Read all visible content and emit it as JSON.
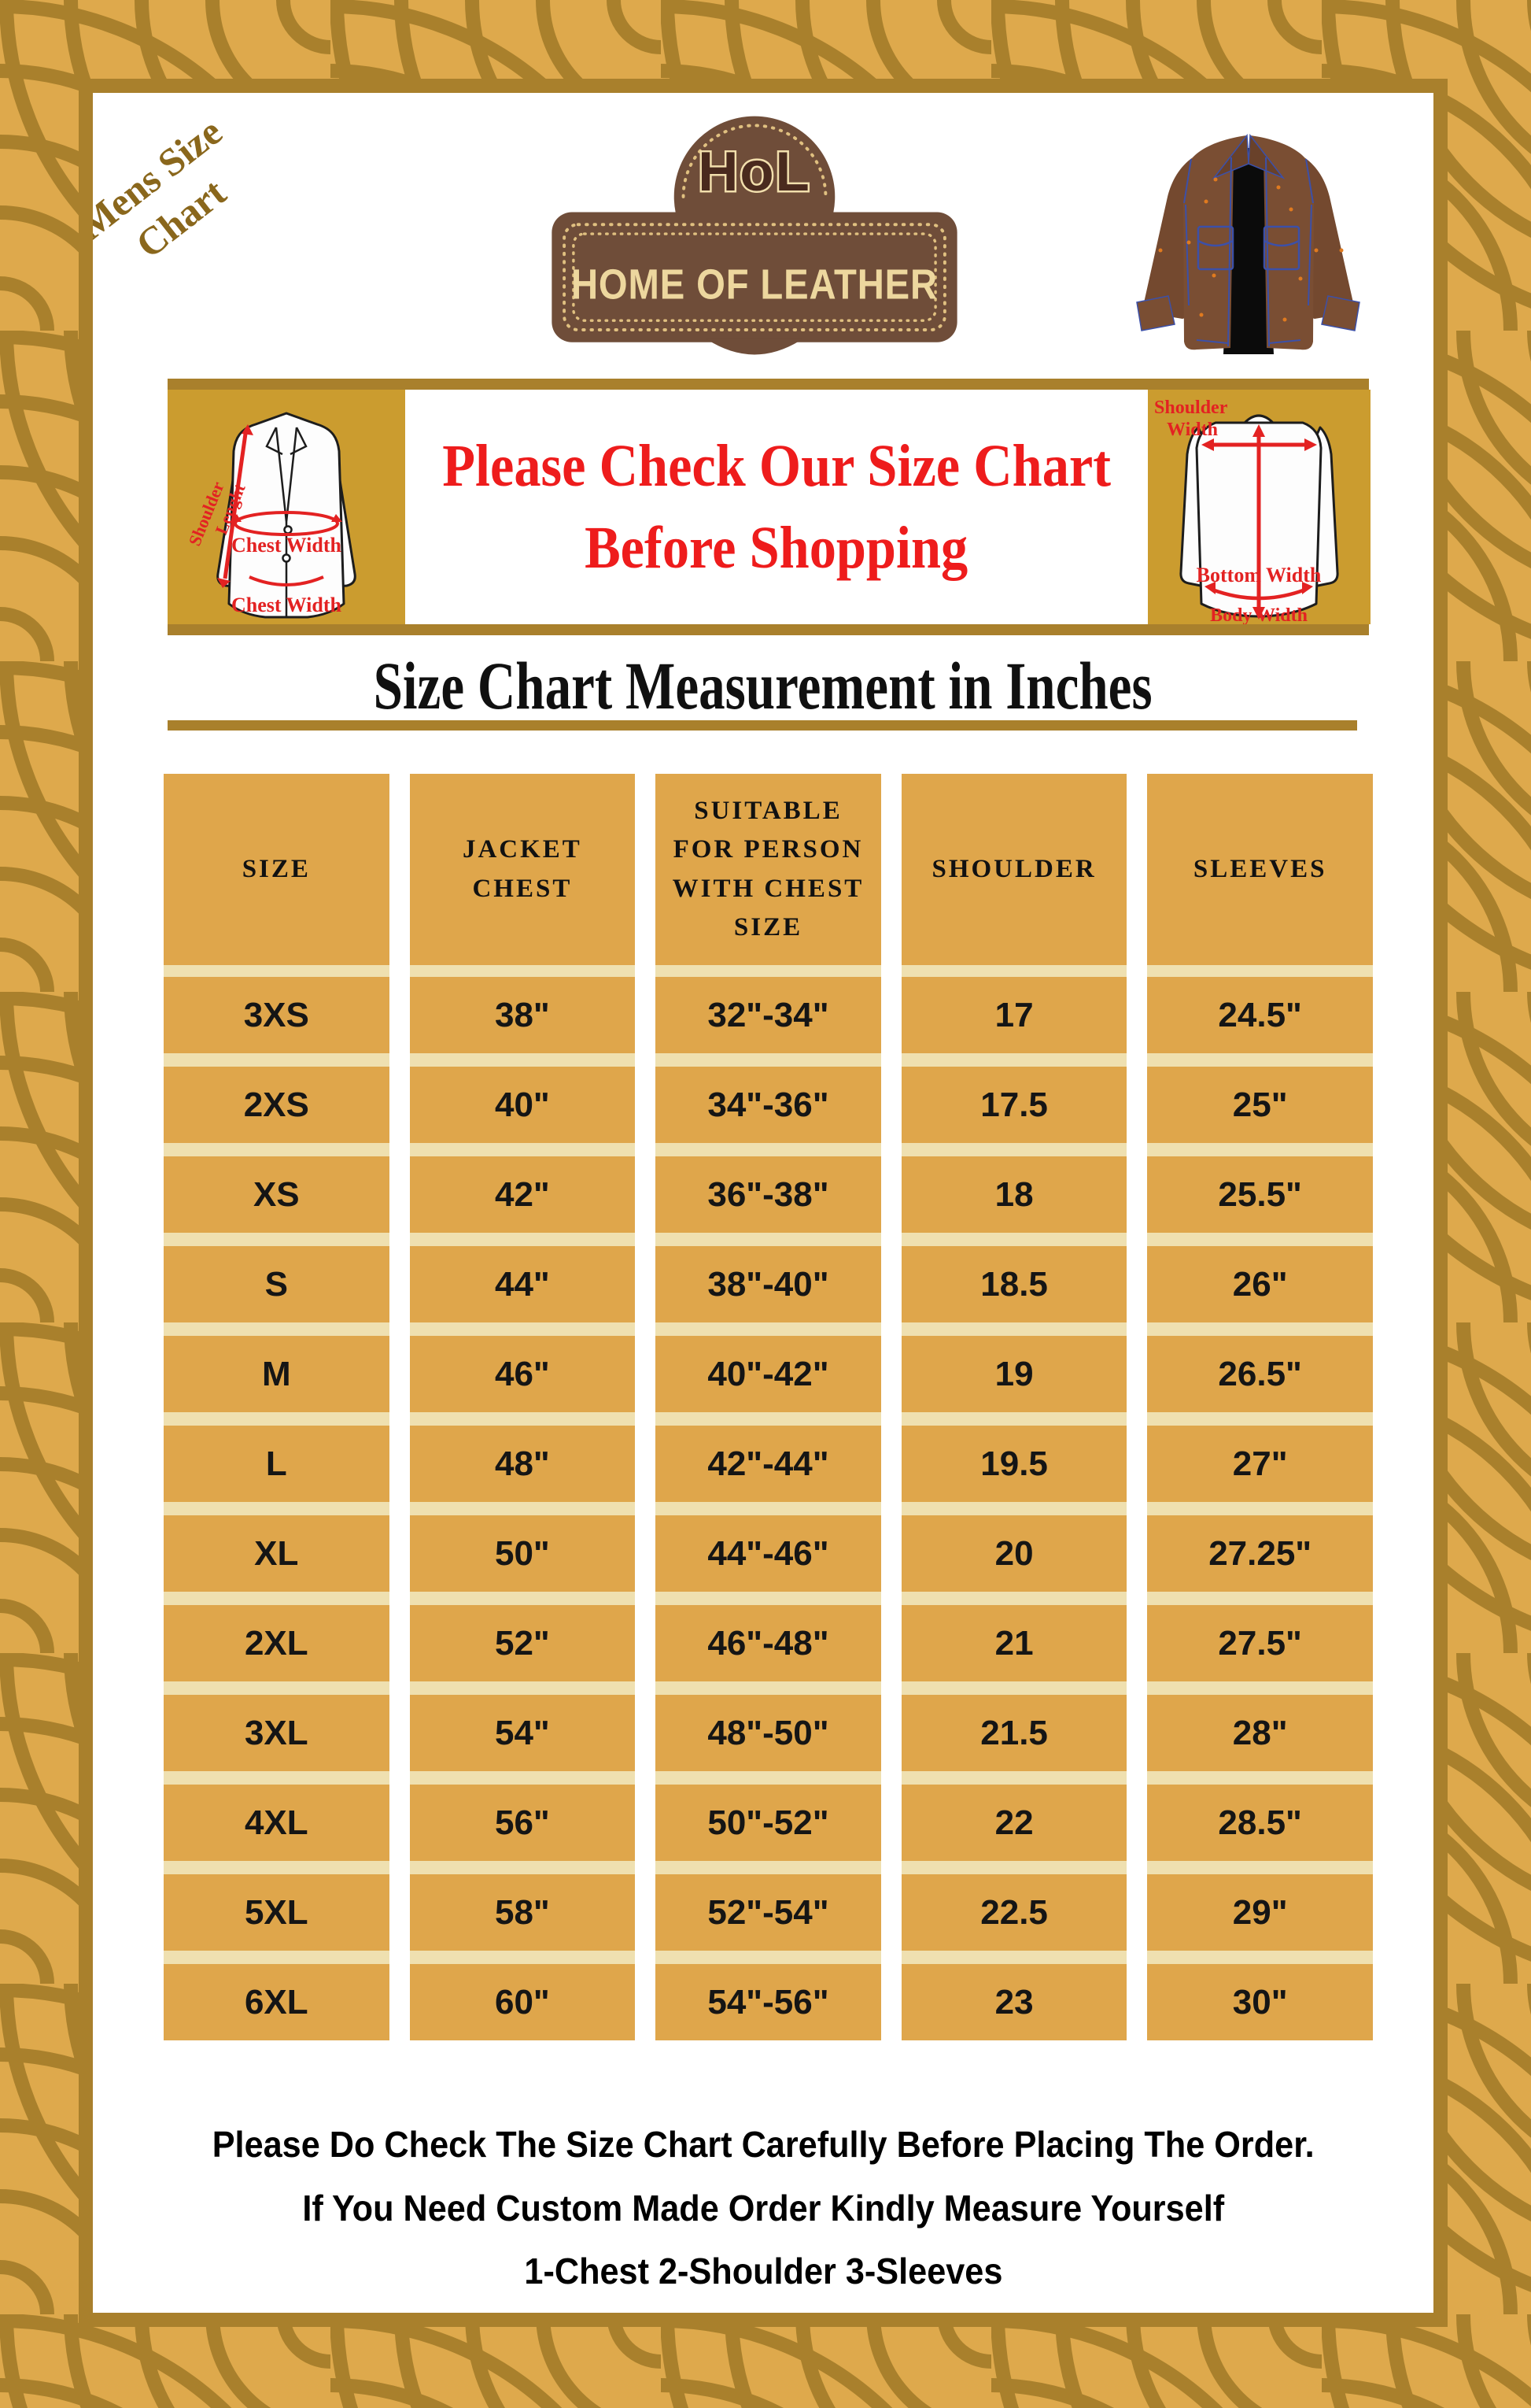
{
  "page": {
    "rotated_label": {
      "line1": "Mens Size",
      "line2": "Chart"
    }
  },
  "logo": {
    "monogram": "HoL",
    "name": "HOME OF LEATHER"
  },
  "illustrations": {
    "hero": "open-front-brown-leather-jacket-illustration",
    "front_diagram": "white-blazer-front-measurement-guide",
    "back_diagram": "white-jacket-back-measurement-guide",
    "border": "golden-fan-arc-pattern-border"
  },
  "banner": {
    "headline_line1": "Please Check Our Size Chart",
    "headline_line2": "Before Shopping",
    "front_diagram": {
      "shoulder_line1": "Shoulder",
      "shoulder_line2": "Lenght",
      "chest_upper": "Chest Width",
      "chest_lower": "Chest Width"
    },
    "back_diagram": {
      "shoulder_line1": "Shoulder",
      "shoulder_line2": "Width",
      "bottom": "Bottom Width",
      "body": "Body Width"
    }
  },
  "section_heading": {
    "title": "Size Chart Measurement in Inches"
  },
  "table": {
    "columns": [
      "SIZE",
      "JACKET CHEST",
      "SUITABLE FOR PERSON WITH CHEST SIZE",
      "SHOULDER",
      "SLEEVES"
    ],
    "rows": [
      [
        "3XS",
        "38\"",
        "32\"-34\"",
        "17",
        "24.5\""
      ],
      [
        "2XS",
        "40\"",
        "34\"-36\"",
        "17.5",
        "25\""
      ],
      [
        "XS",
        "42\"",
        "36\"-38\"",
        "18",
        "25.5\""
      ],
      [
        "S",
        "44\"",
        "38\"-40\"",
        "18.5",
        "26\""
      ],
      [
        "M",
        "46\"",
        "40\"-42\"",
        "19",
        "26.5\""
      ],
      [
        "L",
        "48\"",
        "42\"-44\"",
        "19.5",
        "27\""
      ],
      [
        "XL",
        "50\"",
        "44\"-46\"",
        "20",
        "27.25\""
      ],
      [
        "2XL",
        "52\"",
        "46\"-48\"",
        "21",
        "27.5\""
      ],
      [
        "3XL",
        "54\"",
        "48\"-50\"",
        "21.5",
        "28\""
      ],
      [
        "4XL",
        "56\"",
        "50\"-52\"",
        "22",
        "28.5\""
      ],
      [
        "5XL",
        "58\"",
        "52\"-54\"",
        "22.5",
        "29\""
      ],
      [
        "6XL",
        "60\"",
        "54\"-56\"",
        "23",
        "30\""
      ]
    ]
  },
  "chart_data": {
    "type": "table",
    "title": "Size Chart Measurement in Inches",
    "columns": [
      "SIZE",
      "JACKET CHEST",
      "SUITABLE FOR PERSON WITH CHEST SIZE",
      "SHOULDER",
      "SLEEVES"
    ],
    "rows": [
      [
        "3XS",
        "38\"",
        "32\"-34\"",
        "17",
        "24.5\""
      ],
      [
        "2XS",
        "40\"",
        "34\"-36\"",
        "17.5",
        "25\""
      ],
      [
        "XS",
        "42\"",
        "36\"-38\"",
        "18",
        "25.5\""
      ],
      [
        "S",
        "44\"",
        "38\"-40\"",
        "18.5",
        "26\""
      ],
      [
        "M",
        "46\"",
        "40\"-42\"",
        "19",
        "26.5\""
      ],
      [
        "L",
        "48\"",
        "42\"-44\"",
        "19.5",
        "27\""
      ],
      [
        "XL",
        "50\"",
        "44\"-46\"",
        "20",
        "27.25\""
      ],
      [
        "2XL",
        "52\"",
        "46\"-48\"",
        "21",
        "27.5\""
      ],
      [
        "3XL",
        "54\"",
        "48\"-50\"",
        "21.5",
        "28\""
      ],
      [
        "4XL",
        "56\"",
        "50\"-52\"",
        "22",
        "28.5\""
      ],
      [
        "5XL",
        "58\"",
        "52\"-54\"",
        "22.5",
        "29\""
      ],
      [
        "6XL",
        "60\"",
        "54\"-56\"",
        "23",
        "30\""
      ]
    ]
  },
  "footer": {
    "lines": [
      "Please Do Check The Size Chart Carefully Before Placing The Order.",
      "If You Need Custom Made Order Kindly Measure Yourself",
      "1-Chest 2-Shoulder 3-Sleeves"
    ]
  },
  "colors": {
    "border_gold": "#DEA94C",
    "border_arc": "#A9802C",
    "banner_panel_gold": "#CB9C2F",
    "table_gold": "#DFA64B",
    "row_divider_cream": "#EFE0B0",
    "accent_red": "#EE1C1C",
    "badge_brown": "#6F4D39",
    "corner_label_gold": "#8A671C"
  }
}
